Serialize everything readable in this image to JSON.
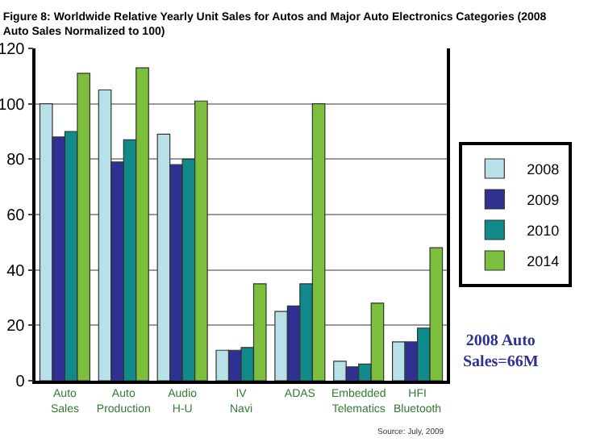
{
  "chart_data": {
    "type": "bar",
    "title": "Figure 8: Worldwide Relative Yearly Unit Sales for Autos and Major Auto Electronics Categories (2008 Auto Sales Normalized to 100)",
    "categories": [
      "Auto Sales",
      "Auto Production",
      "Audio H-U",
      "IV Navi",
      "ADAS",
      "Embedded Telematics",
      "HFI Bluetooth"
    ],
    "series": [
      {
        "name": "2008",
        "color": "#b8e0e8",
        "values": [
          100,
          105,
          89,
          11,
          25,
          7,
          14
        ]
      },
      {
        "name": "2009",
        "color": "#2e3192",
        "values": [
          88,
          79,
          78,
          11,
          27,
          5,
          14
        ]
      },
      {
        "name": "2010",
        "color": "#108a8a",
        "values": [
          90,
          87,
          80,
          12,
          35,
          6,
          19
        ]
      },
      {
        "name": "2014",
        "color": "#7cbf3c",
        "values": [
          111,
          113,
          101,
          35,
          100,
          28,
          48
        ]
      }
    ],
    "ylim": [
      0,
      120
    ],
    "yticks": [
      0,
      20,
      40,
      60,
      80,
      100,
      120
    ],
    "grid": "y",
    "legend": "right",
    "annotations": [
      "2008 Auto Sales=66M",
      "Source: July, 2009"
    ]
  }
}
